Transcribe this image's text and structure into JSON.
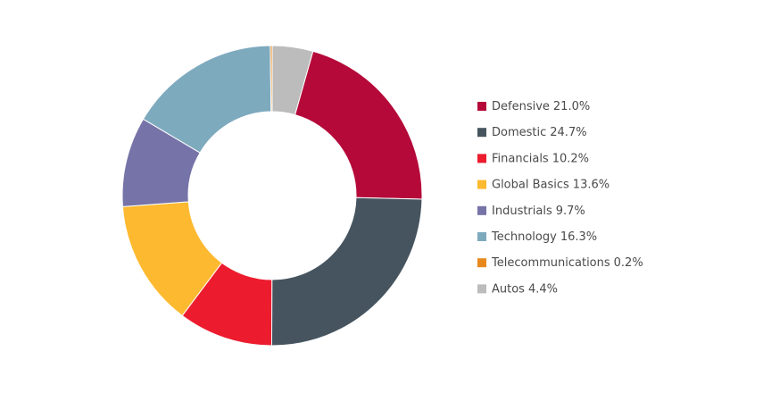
{
  "chart_data": {
    "type": "donut",
    "categories": [
      "Defensive",
      "Domestic",
      "Financials",
      "Global Basics",
      "Industrials",
      "Technology",
      "Telecommunications",
      "Autos"
    ],
    "values": [
      21.0,
      24.7,
      10.2,
      13.6,
      9.7,
      16.3,
      0.2,
      4.4
    ],
    "value_labels": [
      "21.0%",
      "24.7%",
      "10.2%",
      "13.6%",
      "9.7%",
      "16.3%",
      "0.2%",
      "4.4%"
    ],
    "colors": [
      "#b5093a",
      "#45545f",
      "#ec1c2e",
      "#fdb92f",
      "#7673a8",
      "#7eaabe",
      "#e8891e",
      "#bcbcbc"
    ]
  }
}
